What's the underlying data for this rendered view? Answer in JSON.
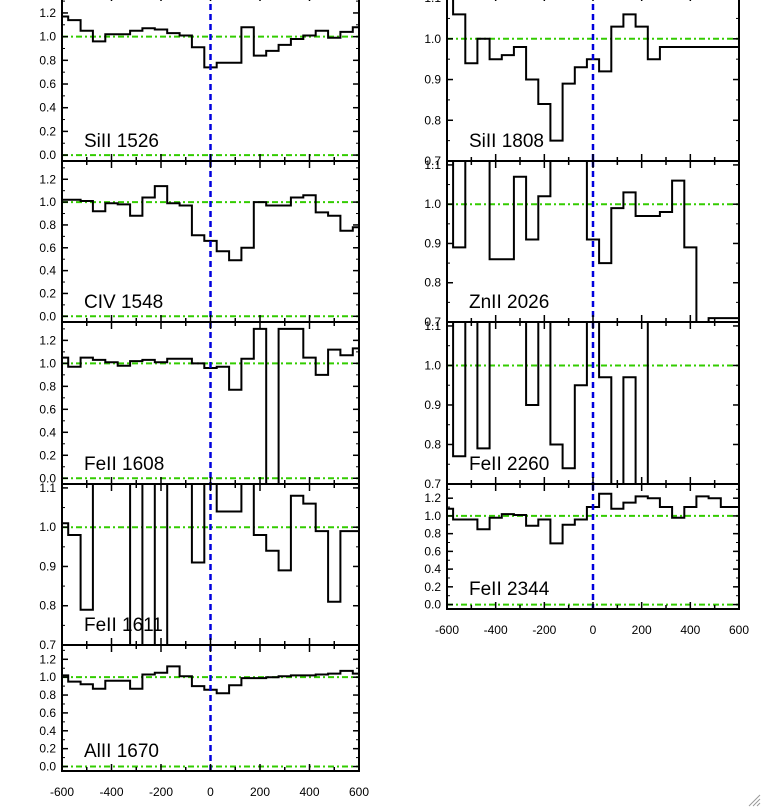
{
  "chart_data": [
    {
      "type": "line",
      "line_label": "SiII 1526",
      "ylim": [
        -0.05,
        1.36
      ],
      "yticks": [
        "0.0",
        "0.2",
        "0.4",
        "0.6",
        "0.8",
        "1.0",
        "1.2"
      ],
      "x": [
        -600,
        -550,
        -500,
        -450,
        -400,
        -350,
        -300,
        -250,
        -200,
        -150,
        -100,
        -50,
        0,
        50,
        100,
        150,
        200,
        250,
        300,
        350,
        400,
        450,
        500,
        550,
        600
      ],
      "values": [
        1.17,
        1.14,
        1.05,
        0.96,
        1.02,
        1.02,
        1.05,
        1.07,
        1.06,
        1.03,
        1.01,
        0.91,
        0.74,
        0.78,
        0.78,
        1.08,
        0.84,
        0.88,
        0.93,
        0.98,
        1.01,
        1.05,
        0.99,
        1.04,
        1.08
      ]
    },
    {
      "type": "line",
      "line_label": "CIV 1548",
      "ylim": [
        -0.05,
        1.36
      ],
      "yticks": [
        "0.0",
        "0.2",
        "0.4",
        "0.6",
        "0.8",
        "1.0",
        "1.2"
      ],
      "x": [
        -600,
        -550,
        -500,
        -450,
        -400,
        -350,
        -300,
        -250,
        -200,
        -150,
        -100,
        -50,
        0,
        50,
        100,
        150,
        200,
        250,
        300,
        350,
        400,
        450,
        500,
        550,
        600
      ],
      "values": [
        1.02,
        1.02,
        1.01,
        0.92,
        0.99,
        0.98,
        0.88,
        1.04,
        1.14,
        0.99,
        0.97,
        0.71,
        0.66,
        0.57,
        0.49,
        0.6,
        1.0,
        0.97,
        0.97,
        1.04,
        1.06,
        0.91,
        0.88,
        0.75,
        0.78
      ]
    },
    {
      "type": "line",
      "line_label": "FeII 1608",
      "ylim": [
        -0.05,
        1.36
      ],
      "yticks": [
        "0.0",
        "0.2",
        "0.4",
        "0.6",
        "0.8",
        "1.0",
        "1.2"
      ],
      "x": [
        -600,
        -550,
        -500,
        -450,
        -400,
        -350,
        -300,
        -250,
        -200,
        -150,
        -100,
        -50,
        0,
        50,
        100,
        150,
        200,
        250,
        300,
        350,
        400,
        450,
        500,
        550,
        600
      ],
      "values": [
        1.05,
        0.97,
        1.05,
        1.03,
        1.01,
        0.98,
        1.02,
        1.03,
        1.01,
        1.04,
        1.04,
        1.0,
        0.96,
        0.97,
        0.77,
        1.04,
        1.3,
        -0.05,
        1.3,
        1.3,
        1.05,
        0.9,
        1.12,
        1.07,
        1.13
      ]
    },
    {
      "type": "line",
      "line_label": "FeII 1611",
      "ylim": [
        0.7,
        1.11
      ],
      "yticks": [
        "0.7",
        "0.8",
        "0.9",
        "1.0",
        "1.1"
      ],
      "x": [
        -600,
        -550,
        -500,
        -450,
        -400,
        -350,
        -300,
        -250,
        -200,
        -150,
        -100,
        -50,
        0,
        50,
        100,
        150,
        200,
        250,
        300,
        350,
        400,
        450,
        500,
        550,
        600
      ],
      "values": [
        1.01,
        0.98,
        0.79,
        1.11,
        1.11,
        1.11,
        0.7,
        1.11,
        0.7,
        1.11,
        1.11,
        0.91,
        1.11,
        1.04,
        1.04,
        1.11,
        0.98,
        0.94,
        0.89,
        1.08,
        1.06,
        0.99,
        0.81,
        0.99,
        0.99
      ]
    },
    {
      "type": "line",
      "line_label": "AlII 1670",
      "ylim": [
        -0.05,
        1.36
      ],
      "yticks": [
        "0.0",
        "0.2",
        "0.4",
        "0.6",
        "0.8",
        "1.0",
        "1.2"
      ],
      "x": [
        -600,
        -550,
        -500,
        -450,
        -400,
        -350,
        -300,
        -250,
        -200,
        -150,
        -100,
        -50,
        0,
        50,
        100,
        150,
        200,
        250,
        300,
        350,
        400,
        450,
        500,
        550,
        600
      ],
      "xticks": [
        "-600",
        "-400",
        "-200",
        "0",
        "200",
        "400",
        "600"
      ],
      "values": [
        1.02,
        0.95,
        0.92,
        0.87,
        0.96,
        0.96,
        0.87,
        1.03,
        1.05,
        1.12,
        1.01,
        0.9,
        0.86,
        0.82,
        0.91,
        0.99,
        0.99,
        1.0,
        1.01,
        1.02,
        1.02,
        1.03,
        1.04,
        1.07,
        1.04
      ]
    },
    {
      "type": "line",
      "line_label": "SiII 1808",
      "ylim": [
        0.7,
        1.11
      ],
      "yticks": [
        "0.7",
        "0.8",
        "0.9",
        "1.0",
        "1.1"
      ],
      "x": [
        -600,
        -550,
        -500,
        -450,
        -400,
        -350,
        -300,
        -250,
        -200,
        -150,
        -100,
        -50,
        0,
        50,
        100,
        150,
        200,
        250,
        300,
        350,
        400,
        450,
        500,
        550,
        600
      ],
      "values": [
        1.1,
        1.06,
        0.94,
        1.0,
        0.95,
        0.96,
        0.98,
        0.9,
        0.84,
        0.75,
        0.89,
        0.93,
        0.95,
        0.92,
        1.03,
        1.06,
        1.03,
        0.95,
        0.98,
        0.98,
        0.98,
        0.98,
        0.98,
        0.98,
        0.98
      ]
    },
    {
      "type": "line",
      "line_label": "ZnII 2026",
      "ylim": [
        0.7,
        1.11
      ],
      "yticks": [
        "0.7",
        "0.8",
        "0.9",
        "1.0",
        "1.1"
      ],
      "x": [
        -600,
        -550,
        -500,
        -450,
        -400,
        -350,
        -300,
        -250,
        -200,
        -150,
        -100,
        -50,
        0,
        50,
        100,
        150,
        200,
        250,
        300,
        350,
        400,
        450,
        500,
        550,
        600
      ],
      "values": [
        1.11,
        0.89,
        1.11,
        1.11,
        0.86,
        0.86,
        1.07,
        0.91,
        1.02,
        1.11,
        1.11,
        1.11,
        0.91,
        0.85,
        0.99,
        1.03,
        0.97,
        0.97,
        0.98,
        1.06,
        0.89,
        0.7,
        0.71,
        0.71,
        0.71
      ]
    },
    {
      "type": "line",
      "line_label": "FeII 2260",
      "ylim": [
        0.7,
        1.11
      ],
      "yticks": [
        "0.7",
        "0.8",
        "0.9",
        "1.0",
        "1.1"
      ],
      "x": [
        -600,
        -550,
        -500,
        -450,
        -400,
        -350,
        -300,
        -250,
        -200,
        -150,
        -100,
        -50,
        0,
        50,
        100,
        150,
        200,
        250,
        300,
        350,
        400,
        450,
        500,
        550,
        600
      ],
      "values": [
        1.11,
        0.77,
        1.11,
        0.79,
        1.11,
        1.11,
        1.11,
        0.9,
        1.11,
        0.8,
        0.74,
        0.95,
        1.11,
        0.97,
        0.7,
        0.97,
        0.7,
        1.11,
        1.11,
        1.11,
        1.11,
        1.11,
        1.11,
        1.11,
        1.11
      ]
    },
    {
      "type": "line",
      "line_label": "FeII 2344",
      "ylim": [
        -0.05,
        1.36
      ],
      "yticks": [
        "0.0",
        "0.2",
        "0.4",
        "0.6",
        "0.8",
        "1.0",
        "1.2"
      ],
      "x": [
        -600,
        -550,
        -500,
        -450,
        -400,
        -350,
        -300,
        -250,
        -200,
        -150,
        -100,
        -50,
        0,
        50,
        100,
        150,
        200,
        250,
        300,
        350,
        400,
        450,
        500,
        550,
        600
      ],
      "xticks": [
        "-600",
        "-400",
        "-200",
        "0",
        "200",
        "400",
        "600"
      ],
      "values": [
        1.08,
        0.96,
        0.96,
        0.85,
        0.98,
        1.02,
        1.01,
        0.89,
        0.96,
        0.69,
        0.9,
        0.96,
        1.1,
        1.25,
        1.08,
        1.15,
        1.22,
        1.2,
        1.1,
        0.98,
        1.1,
        1.22,
        1.2,
        1.1,
        1.1
      ]
    }
  ],
  "colors": {
    "axis": "#000000",
    "data": "#000000",
    "continuum": "#33cc00",
    "zero_velocity": "#0000dd"
  }
}
